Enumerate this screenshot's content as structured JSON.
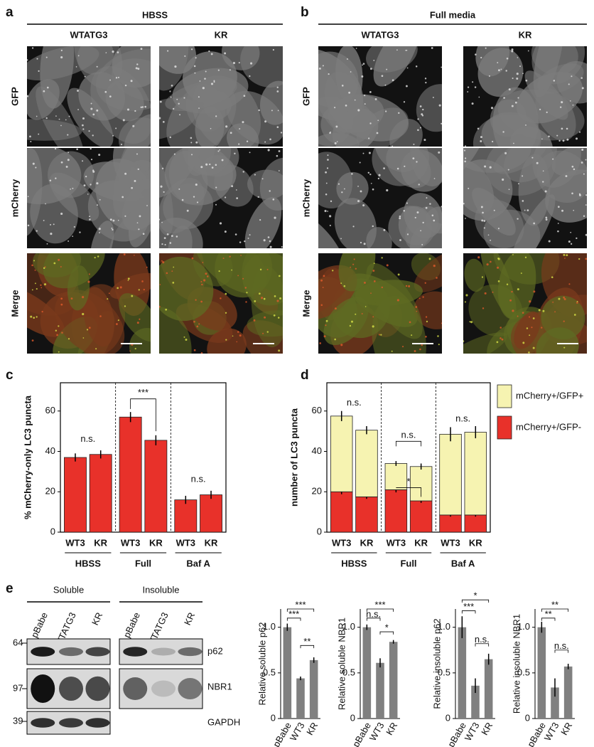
{
  "figure": {
    "panel_a": {
      "label": "a",
      "condition": "HBSS",
      "columns": [
        "WTATG3",
        "KR"
      ],
      "rows": [
        "GFP",
        "mCherry",
        "Merge"
      ]
    },
    "panel_b": {
      "label": "b",
      "condition": "Full media",
      "columns": [
        "WTATG3",
        "KR"
      ],
      "rows": [
        "GFP",
        "mCherry",
        "Merge"
      ]
    },
    "panel_e_blot": {
      "label": "e",
      "fractions": [
        "Soluble",
        "Insoluble"
      ],
      "lanes": [
        [
          "pBabe",
          "WTATG3",
          "KR"
        ],
        [
          "pBabe",
          "WTATG3",
          "KR"
        ]
      ],
      "size_markers": [
        64,
        97,
        39
      ],
      "proteins": [
        "p62",
        "NBR1",
        "GAPDH"
      ]
    }
  },
  "chart_data": [
    {
      "type": "bar",
      "label": "c",
      "ylabel": "% mCherry-only LC3 puncta",
      "categories": [
        "WT3",
        "KR",
        "WT3",
        "KR",
        "WT3",
        "KR"
      ],
      "groups": [
        "HBSS",
        "Full",
        "Baf A"
      ],
      "values": [
        37,
        38.5,
        57,
        45.5,
        16,
        18.5
      ],
      "errors": [
        2,
        2,
        2.5,
        2.5,
        2,
        2
      ],
      "color": "#e8312a",
      "ylim": [
        0,
        74
      ],
      "yticks": [
        0,
        20,
        40,
        60
      ],
      "annotations": [
        "n.s.",
        "***",
        "n.s."
      ]
    },
    {
      "type": "stacked_bar",
      "label": "d",
      "ylabel": "number of LC3 puncta",
      "categories": [
        "WT3",
        "KR",
        "WT3",
        "KR",
        "WT3",
        "KR"
      ],
      "groups": [
        "HBSS",
        "Full",
        "Baf A"
      ],
      "series": [
        {
          "name": "mCherry+/GFP-",
          "color": "#e8312a",
          "values": [
            20,
            17.5,
            21,
            15.5,
            8.5,
            8.5
          ],
          "errors": [
            1.2,
            1,
            1.3,
            1,
            0.8,
            0.8
          ]
        },
        {
          "name": "mCherry+/GFP+",
          "color": "#f6f3b1",
          "values": [
            37.5,
            33,
            13,
            17,
            40,
            41
          ],
          "errors": [
            2.5,
            2,
            1.2,
            1.5,
            3.5,
            3
          ]
        }
      ],
      "ylim": [
        0,
        74
      ],
      "yticks": [
        0,
        20,
        40,
        60
      ],
      "annotations": [
        "n.s.",
        "n.s.",
        "*",
        "n.s."
      ]
    },
    {
      "type": "bar",
      "ylabel": "Relative soluble p62",
      "categories": [
        "pBabe",
        "WT3",
        "KR"
      ],
      "values": [
        1.0,
        0.44,
        0.64
      ],
      "errors": [
        0.04,
        0.02,
        0.03
      ],
      "color": "#808080",
      "ylim": [
        0,
        1.2
      ],
      "yticks": [
        0,
        0.5,
        {
          "value": 1,
          "label": "1.0"
        }
      ],
      "annotations": [
        "***",
        "***",
        "**"
      ]
    },
    {
      "type": "bar",
      "ylabel": "Relative soluble NBR1",
      "categories": [
        "pBabe",
        "WT3",
        "KR"
      ],
      "values": [
        1.0,
        0.61,
        0.84
      ],
      "errors": [
        0.03,
        0.05,
        0.02
      ],
      "color": "#808080",
      "ylim": [
        0,
        1.2
      ],
      "yticks": [
        0,
        0.5,
        {
          "value": 1,
          "label": "1.0"
        }
      ],
      "annotations": [
        "***",
        "n.s.",
        "*"
      ]
    },
    {
      "type": "bar",
      "ylabel": "Relative insoluble p62",
      "categories": [
        "pBabe",
        "WT3",
        "KR"
      ],
      "values": [
        1.0,
        0.36,
        0.65
      ],
      "errors": [
        0.12,
        0.08,
        0.06
      ],
      "color": "#808080",
      "ylim": [
        0,
        1.2
      ],
      "yticks": [
        0,
        0.5,
        {
          "value": 1,
          "label": "1.0"
        }
      ],
      "annotations": [
        "*",
        "***",
        "n.s."
      ]
    },
    {
      "type": "bar",
      "ylabel": "Relative insoluble NBR1",
      "categories": [
        "pBabe",
        "WT3",
        "KR"
      ],
      "values": [
        1.0,
        0.34,
        0.57
      ],
      "errors": [
        0.06,
        0.1,
        0.03
      ],
      "color": "#808080",
      "ylim": [
        0,
        1.2
      ],
      "yticks": [
        0,
        0.5,
        {
          "value": 1,
          "label": "1.0"
        }
      ],
      "annotations": [
        "**",
        "**",
        "n.s."
      ]
    }
  ]
}
